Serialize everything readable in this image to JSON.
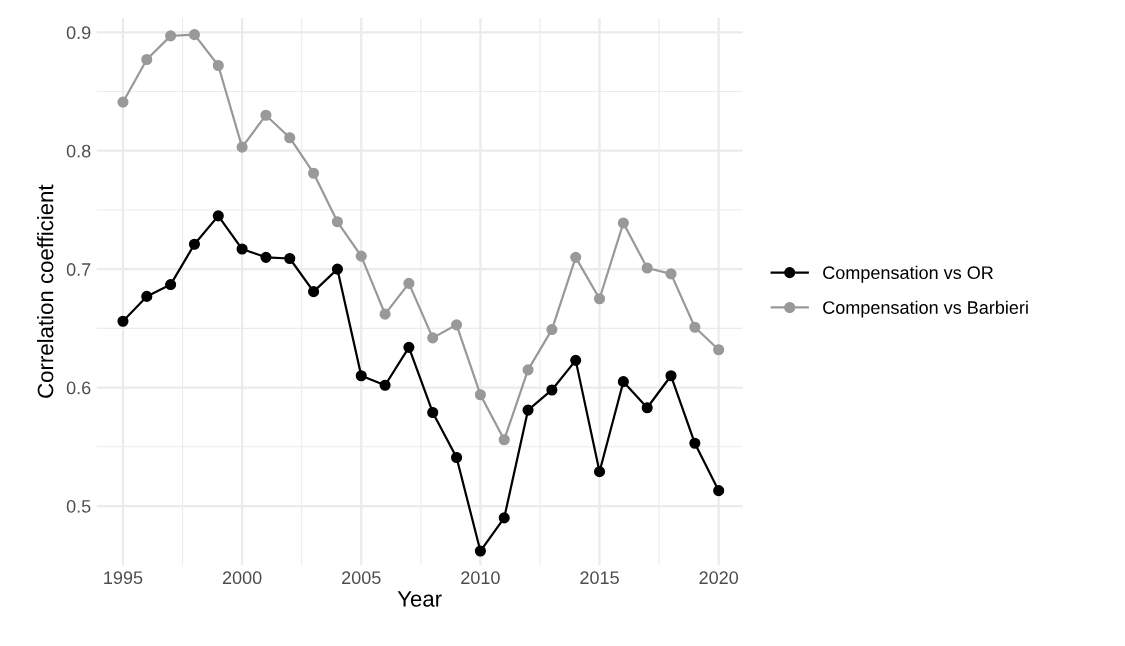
{
  "chart_data": {
    "type": "line",
    "xlabel": "Year",
    "ylabel": "Correlation coefficient",
    "x": [
      1995,
      1996,
      1997,
      1998,
      1999,
      2000,
      2001,
      2002,
      2003,
      2004,
      2005,
      2006,
      2007,
      2008,
      2009,
      2010,
      2011,
      2012,
      2013,
      2014,
      2015,
      2016,
      2017,
      2018,
      2019,
      2020
    ],
    "series": [
      {
        "name": "Compensation vs OR",
        "color": "#000000",
        "values": [
          0.656,
          0.677,
          0.687,
          0.721,
          0.745,
          0.717,
          0.71,
          0.709,
          0.681,
          0.7,
          0.61,
          0.602,
          0.634,
          0.579,
          0.541,
          0.462,
          0.49,
          0.581,
          0.598,
          0.623,
          0.529,
          0.605,
          0.583,
          0.61,
          0.553,
          0.513
        ]
      },
      {
        "name": "Compensation vs Barbieri",
        "color": "#999999",
        "values": [
          0.841,
          0.877,
          0.897,
          0.898,
          0.872,
          0.803,
          0.83,
          0.811,
          0.781,
          0.74,
          0.711,
          0.662,
          0.688,
          0.642,
          0.653,
          0.594,
          0.556,
          0.615,
          0.649,
          0.71,
          0.675,
          0.739,
          0.701,
          0.696,
          0.651,
          0.632
        ]
      }
    ],
    "xlim": [
      1993.9,
      2021.0
    ],
    "ylim": [
      0.45,
      0.912
    ],
    "xticks": [
      1995,
      {
        "value": 1997.5,
        "label": null
      },
      2000,
      {
        "value": 2002.5,
        "label": null
      },
      2005,
      {
        "value": 2007.5,
        "label": null
      },
      2010,
      {
        "value": 2012.5,
        "label": null
      },
      2015,
      {
        "value": 2017.5,
        "label": null
      },
      2020
    ],
    "yticks": [
      0.5,
      {
        "value": 0.55,
        "label": null
      },
      0.6,
      {
        "value": 0.65,
        "label": null
      },
      0.7,
      {
        "value": 0.75,
        "label": null
      },
      0.8,
      {
        "value": 0.85,
        "label": null
      },
      0.9
    ],
    "grid": true,
    "legend": "right",
    "marker": "circle",
    "line_style": "solid"
  }
}
